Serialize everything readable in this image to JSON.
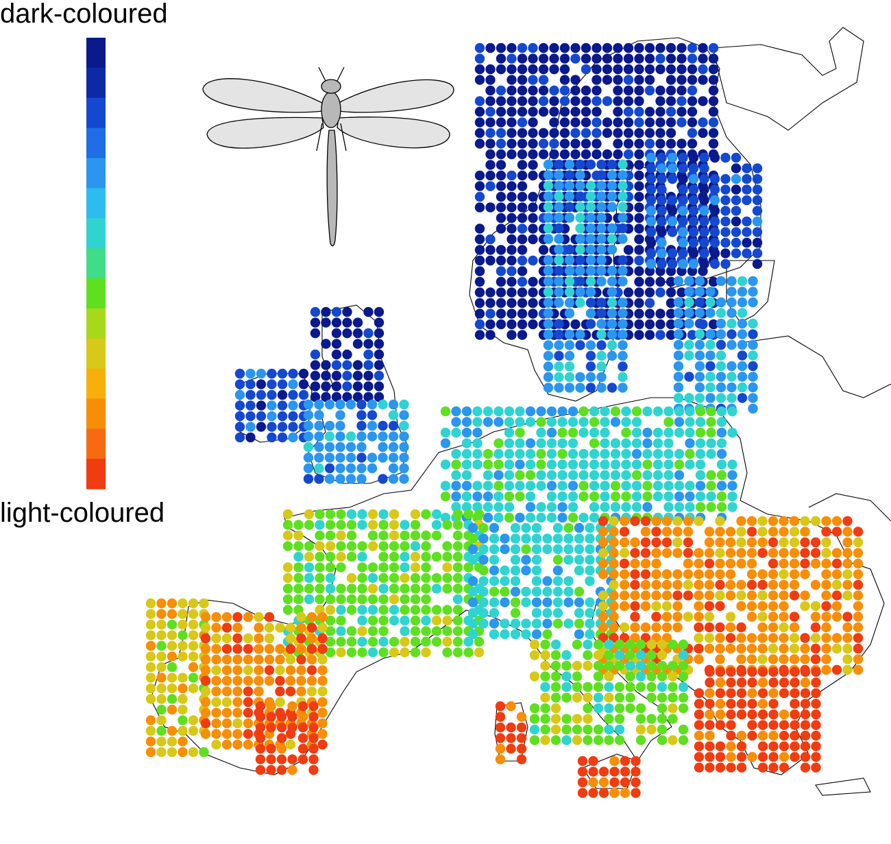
{
  "legend": {
    "top_label": "dark-coloured",
    "bottom_label": "light-coloured",
    "ramp_colors": [
      "#0a1a8c",
      "#0c2aa8",
      "#1548d0",
      "#1f6ee6",
      "#2a96ef",
      "#2cbcf0",
      "#2fd4d0",
      "#3fdc8a",
      "#5ee020",
      "#a8d81a",
      "#d8c818",
      "#f8b008",
      "#f88e08",
      "#f86a10",
      "#f03c10"
    ]
  },
  "icon": "dragonfly-icon",
  "map": {
    "subject": "Europe",
    "dot_color_scale_from_dark_to_light": [
      "#0a1a8c",
      "#1548d0",
      "#2a96ef",
      "#2fd4d0",
      "#5ee020",
      "#d8c818",
      "#f88e08",
      "#f03c10"
    ]
  }
}
